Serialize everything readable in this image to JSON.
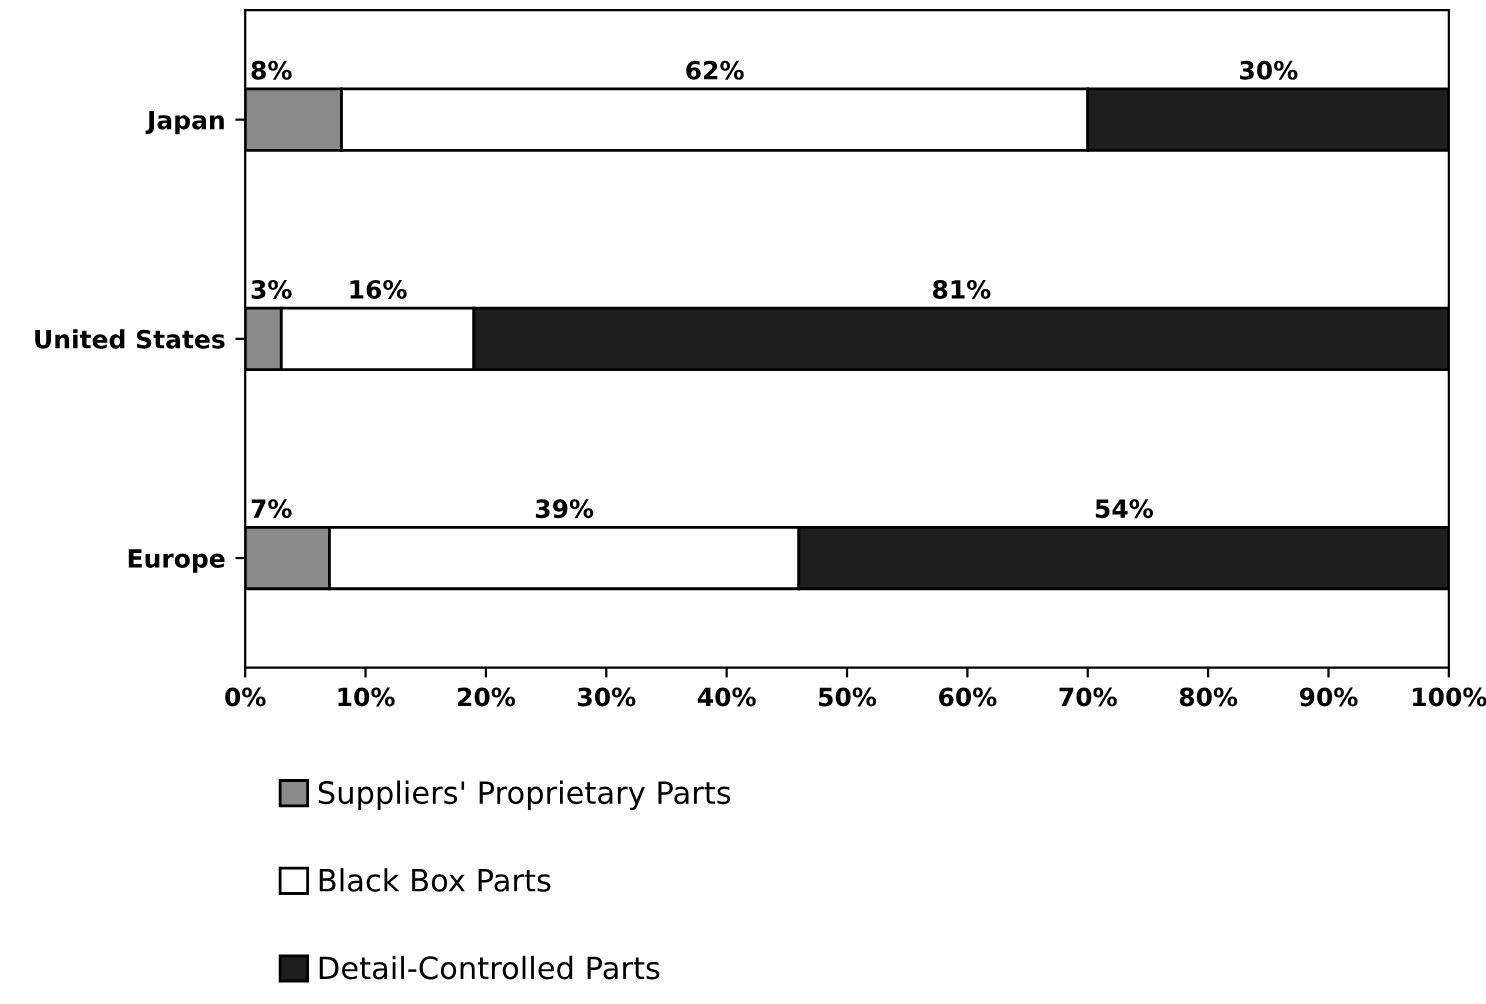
{
  "chart_data": {
    "type": "bar",
    "orientation": "horizontal",
    "stacked": true,
    "categories": [
      "Japan",
      "United States",
      "Europe"
    ],
    "series": [
      {
        "name": "Suppliers' Proprietary Parts",
        "color": "#8a8a8a",
        "values": [
          8,
          3,
          7
        ],
        "value_labels": [
          "8%",
          "3%",
          "7%"
        ]
      },
      {
        "name": "Black Box Parts",
        "color": "#ffffff",
        "values": [
          62,
          16,
          39
        ],
        "value_labels": [
          "62%",
          "16%",
          "39%"
        ]
      },
      {
        "name": "Detail-Controlled Parts",
        "color": "#1e1e1e",
        "values": [
          30,
          81,
          54
        ],
        "value_labels": [
          "30%",
          "81%",
          "54%"
        ]
      }
    ],
    "xlim": [
      0,
      100
    ],
    "xticks": [
      {
        "value": 0,
        "label": "0%"
      },
      {
        "value": 10,
        "label": "10%"
      },
      {
        "value": 20,
        "label": "20%"
      },
      {
        "value": 30,
        "label": "30%"
      },
      {
        "value": 40,
        "label": "40%"
      },
      {
        "value": 50,
        "label": "50%"
      },
      {
        "value": 60,
        "label": "60%"
      },
      {
        "value": 70,
        "label": "70%"
      },
      {
        "value": 80,
        "label": "80%"
      },
      {
        "value": 90,
        "label": "90%"
      },
      {
        "value": 100,
        "label": "100%"
      }
    ],
    "grid": false,
    "legend": "bottom"
  }
}
